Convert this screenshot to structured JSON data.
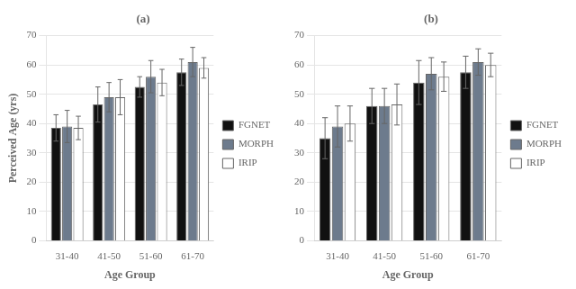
{
  "chart_data": [
    {
      "type": "bar",
      "title": "(a)",
      "xlabel": "Age Group",
      "ylabel": "Perceived Age (yrs)",
      "categories": [
        "31-40",
        "41-50",
        "51-60",
        "61-70"
      ],
      "series": [
        {
          "name": "FGNET",
          "color": "#111111",
          "values": [
            38.5,
            46.5,
            52.5,
            57.5
          ],
          "errors": [
            4.5,
            6.0,
            3.5,
            4.5
          ]
        },
        {
          "name": "MORPH",
          "color": "#6d7b8d",
          "values": [
            39.0,
            49.0,
            56.0,
            61.0
          ],
          "errors": [
            5.5,
            5.0,
            5.5,
            5.0
          ]
        },
        {
          "name": "IRIP",
          "color": "#ffffff",
          "values": [
            38.5,
            49.0,
            54.0,
            59.0
          ],
          "errors": [
            4.0,
            6.0,
            4.5,
            3.5
          ]
        }
      ],
      "ylim": [
        0,
        70
      ],
      "yticks": [
        0,
        10,
        20,
        30,
        40,
        50,
        60,
        70
      ],
      "grid": true,
      "legend": "right"
    },
    {
      "type": "bar",
      "title": "(b)",
      "xlabel": "Age Group",
      "categories": [
        "31-40",
        "41-50",
        "51-60",
        "61-70"
      ],
      "series": [
        {
          "name": "FGNET",
          "color": "#111111",
          "values": [
            35.0,
            46.0,
            54.0,
            57.5
          ],
          "errors": [
            7.0,
            6.0,
            7.5,
            5.5
          ]
        },
        {
          "name": "MORPH",
          "color": "#6d7b8d",
          "values": [
            39.0,
            46.0,
            57.0,
            61.0
          ],
          "errors": [
            7.0,
            6.0,
            5.5,
            4.5
          ]
        },
        {
          "name": "IRIP",
          "color": "#ffffff",
          "values": [
            40.0,
            46.5,
            56.0,
            60.0
          ],
          "errors": [
            6.0,
            7.0,
            5.0,
            4.0
          ]
        }
      ],
      "ylim": [
        0,
        70
      ],
      "yticks": [
        0,
        10,
        20,
        30,
        40,
        50,
        60,
        70
      ],
      "grid": true,
      "legend": "right"
    }
  ]
}
